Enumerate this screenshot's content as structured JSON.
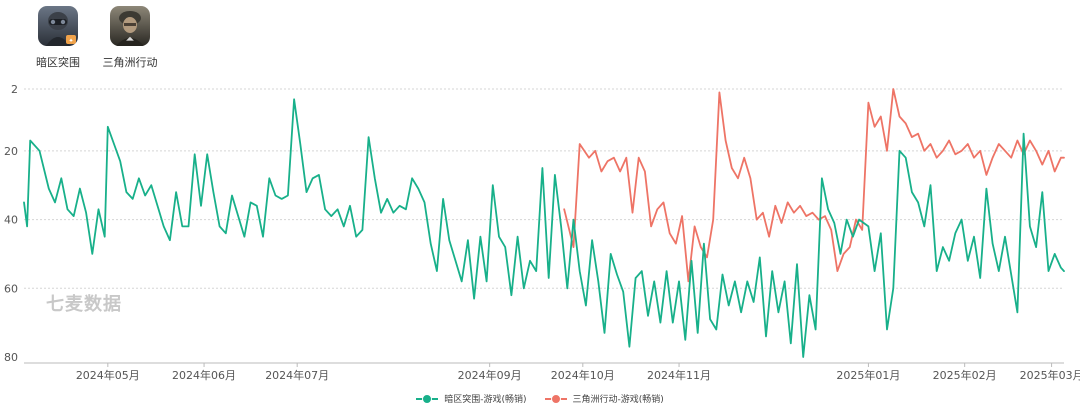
{
  "apps": [
    {
      "name": "暗区突围",
      "icon": "soldier-mask-app-icon"
    },
    {
      "name": "三角洲行动",
      "icon": "soldier-portrait-app-icon"
    }
  ],
  "watermark": "七麦数据",
  "colors": {
    "series1": "#18b08a",
    "series2": "#ee7466",
    "grid": "#d5d5d5",
    "axis_text": "#555555"
  },
  "chart_data": {
    "type": "line",
    "title": "",
    "xlabel": "",
    "ylabel": "",
    "ylim": [
      80,
      2
    ],
    "y_reversed": true,
    "yticks": [
      2,
      20,
      40,
      60,
      80
    ],
    "x_range": [
      "2024-04-04",
      "2025-03-05"
    ],
    "xticks": [
      "2024-05-01",
      "2024-06-01",
      "2024-07-01",
      "2024-09-01",
      "2024-10-01",
      "2024-11-01",
      "2025-01-01",
      "2025-02-01",
      "2025-03-01"
    ],
    "xtick_labels": [
      "2024年05月",
      "2024年06月",
      "2024年07月",
      "2024年09月",
      "2024年10月",
      "2024年11月",
      "2025年01月",
      "2025年02月",
      "2025年03月"
    ],
    "grid": true,
    "legend_position": "bottom",
    "series": [
      {
        "name": "暗区突围-游戏(畅销)",
        "color": "#18b08a",
        "points": [
          [
            "2024-04-04",
            35
          ],
          [
            "2024-04-05",
            42
          ],
          [
            "2024-04-06",
            17
          ],
          [
            "2024-04-09",
            20
          ],
          [
            "2024-04-12",
            31
          ],
          [
            "2024-04-14",
            35
          ],
          [
            "2024-04-16",
            28
          ],
          [
            "2024-04-18",
            37
          ],
          [
            "2024-04-20",
            39
          ],
          [
            "2024-04-22",
            31
          ],
          [
            "2024-04-24",
            38
          ],
          [
            "2024-04-26",
            50
          ],
          [
            "2024-04-28",
            37
          ],
          [
            "2024-04-30",
            45
          ],
          [
            "2024-05-01",
            13
          ],
          [
            "2024-05-03",
            18
          ],
          [
            "2024-05-05",
            23
          ],
          [
            "2024-05-07",
            32
          ],
          [
            "2024-05-09",
            34
          ],
          [
            "2024-05-11",
            28
          ],
          [
            "2024-05-13",
            33
          ],
          [
            "2024-05-15",
            30
          ],
          [
            "2024-05-17",
            36
          ],
          [
            "2024-05-19",
            42
          ],
          [
            "2024-05-21",
            46
          ],
          [
            "2024-05-23",
            32
          ],
          [
            "2024-05-25",
            42
          ],
          [
            "2024-05-27",
            42
          ],
          [
            "2024-05-29",
            21
          ],
          [
            "2024-05-31",
            36
          ],
          [
            "2024-06-02",
            21
          ],
          [
            "2024-06-04",
            32
          ],
          [
            "2024-06-06",
            42
          ],
          [
            "2024-06-08",
            44
          ],
          [
            "2024-06-10",
            33
          ],
          [
            "2024-06-12",
            39
          ],
          [
            "2024-06-14",
            45
          ],
          [
            "2024-06-16",
            35
          ],
          [
            "2024-06-18",
            36
          ],
          [
            "2024-06-20",
            45
          ],
          [
            "2024-06-22",
            28
          ],
          [
            "2024-06-24",
            33
          ],
          [
            "2024-06-26",
            34
          ],
          [
            "2024-06-28",
            33
          ],
          [
            "2024-06-30",
            5
          ],
          [
            "2024-07-02",
            18
          ],
          [
            "2024-07-04",
            32
          ],
          [
            "2024-07-06",
            28
          ],
          [
            "2024-07-08",
            27
          ],
          [
            "2024-07-10",
            37
          ],
          [
            "2024-07-12",
            39
          ],
          [
            "2024-07-14",
            37
          ],
          [
            "2024-07-16",
            42
          ],
          [
            "2024-07-18",
            36
          ],
          [
            "2024-07-20",
            45
          ],
          [
            "2024-07-22",
            43
          ],
          [
            "2024-07-24",
            16
          ],
          [
            "2024-07-26",
            28
          ],
          [
            "2024-07-28",
            38
          ],
          [
            "2024-07-30",
            34
          ],
          [
            "2024-08-01",
            38
          ],
          [
            "2024-08-03",
            36
          ],
          [
            "2024-08-05",
            37
          ],
          [
            "2024-08-07",
            28
          ],
          [
            "2024-08-09",
            31
          ],
          [
            "2024-08-11",
            35
          ],
          [
            "2024-08-13",
            47
          ],
          [
            "2024-08-15",
            55
          ],
          [
            "2024-08-17",
            34
          ],
          [
            "2024-08-19",
            46
          ],
          [
            "2024-08-21",
            52
          ],
          [
            "2024-08-23",
            58
          ],
          [
            "2024-08-25",
            46
          ],
          [
            "2024-08-27",
            63
          ],
          [
            "2024-08-29",
            45
          ],
          [
            "2024-08-31",
            58
          ],
          [
            "2024-09-02",
            30
          ],
          [
            "2024-09-04",
            45
          ],
          [
            "2024-09-06",
            48
          ],
          [
            "2024-09-08",
            62
          ],
          [
            "2024-09-10",
            45
          ],
          [
            "2024-09-12",
            60
          ],
          [
            "2024-09-14",
            52
          ],
          [
            "2024-09-16",
            55
          ],
          [
            "2024-09-18",
            25
          ],
          [
            "2024-09-20",
            57
          ],
          [
            "2024-09-22",
            27
          ],
          [
            "2024-09-24",
            42
          ],
          [
            "2024-09-26",
            60
          ],
          [
            "2024-09-28",
            40
          ],
          [
            "2024-09-30",
            55
          ],
          [
            "2024-10-02",
            65
          ],
          [
            "2024-10-04",
            46
          ],
          [
            "2024-10-06",
            58
          ],
          [
            "2024-10-08",
            73
          ],
          [
            "2024-10-10",
            50
          ],
          [
            "2024-10-12",
            56
          ],
          [
            "2024-10-14",
            61
          ],
          [
            "2024-10-16",
            77
          ],
          [
            "2024-10-18",
            57
          ],
          [
            "2024-10-20",
            55
          ],
          [
            "2024-10-22",
            68
          ],
          [
            "2024-10-24",
            58
          ],
          [
            "2024-10-26",
            70
          ],
          [
            "2024-10-28",
            55
          ],
          [
            "2024-10-30",
            70
          ],
          [
            "2024-11-01",
            58
          ],
          [
            "2024-11-03",
            75
          ],
          [
            "2024-11-05",
            52
          ],
          [
            "2024-11-07",
            73
          ],
          [
            "2024-11-09",
            47
          ],
          [
            "2024-11-11",
            69
          ],
          [
            "2024-11-13",
            72
          ],
          [
            "2024-11-15",
            56
          ],
          [
            "2024-11-17",
            65
          ],
          [
            "2024-11-19",
            58
          ],
          [
            "2024-11-21",
            67
          ],
          [
            "2024-11-23",
            58
          ],
          [
            "2024-11-25",
            64
          ],
          [
            "2024-11-27",
            51
          ],
          [
            "2024-11-29",
            74
          ],
          [
            "2024-12-01",
            55
          ],
          [
            "2024-12-03",
            67
          ],
          [
            "2024-12-05",
            58
          ],
          [
            "2024-12-07",
            76
          ],
          [
            "2024-12-09",
            53
          ],
          [
            "2024-12-11",
            80
          ],
          [
            "2024-12-13",
            62
          ],
          [
            "2024-12-15",
            72
          ],
          [
            "2024-12-17",
            28
          ],
          [
            "2024-12-19",
            37
          ],
          [
            "2024-12-21",
            41
          ],
          [
            "2024-12-23",
            50
          ],
          [
            "2024-12-25",
            40
          ],
          [
            "2024-12-27",
            45
          ],
          [
            "2024-12-29",
            40
          ],
          [
            "2025-01-01",
            42
          ],
          [
            "2025-01-03",
            55
          ],
          [
            "2025-01-05",
            44
          ],
          [
            "2025-01-07",
            72
          ],
          [
            "2025-01-09",
            60
          ],
          [
            "2025-01-11",
            20
          ],
          [
            "2025-01-13",
            22
          ],
          [
            "2025-01-15",
            32
          ],
          [
            "2025-01-17",
            35
          ],
          [
            "2025-01-19",
            42
          ],
          [
            "2025-01-21",
            30
          ],
          [
            "2025-01-23",
            55
          ],
          [
            "2025-01-25",
            48
          ],
          [
            "2025-01-27",
            52
          ],
          [
            "2025-01-29",
            44
          ],
          [
            "2025-01-31",
            40
          ],
          [
            "2025-02-02",
            52
          ],
          [
            "2025-02-04",
            45
          ],
          [
            "2025-02-06",
            57
          ],
          [
            "2025-02-08",
            31
          ],
          [
            "2025-02-10",
            47
          ],
          [
            "2025-02-12",
            55
          ],
          [
            "2025-02-14",
            45
          ],
          [
            "2025-02-16",
            56
          ],
          [
            "2025-02-18",
            67
          ],
          [
            "2025-02-20",
            15
          ],
          [
            "2025-02-22",
            42
          ],
          [
            "2025-02-24",
            48
          ],
          [
            "2025-02-26",
            32
          ],
          [
            "2025-02-28",
            55
          ],
          [
            "2025-03-02",
            50
          ],
          [
            "2025-03-04",
            54
          ],
          [
            "2025-03-05",
            55
          ]
        ]
      },
      {
        "name": "三角洲行动-游戏(畅销)",
        "color": "#ee7466",
        "points": [
          [
            "2024-09-25",
            37
          ],
          [
            "2024-09-28",
            48
          ],
          [
            "2024-09-30",
            18
          ],
          [
            "2024-10-03",
            22
          ],
          [
            "2024-10-05",
            20
          ],
          [
            "2024-10-07",
            26
          ],
          [
            "2024-10-09",
            23
          ],
          [
            "2024-10-11",
            22
          ],
          [
            "2024-10-13",
            26
          ],
          [
            "2024-10-15",
            22
          ],
          [
            "2024-10-17",
            38
          ],
          [
            "2024-10-19",
            22
          ],
          [
            "2024-10-21",
            26
          ],
          [
            "2024-10-23",
            42
          ],
          [
            "2024-10-25",
            37
          ],
          [
            "2024-10-27",
            35
          ],
          [
            "2024-10-29",
            44
          ],
          [
            "2024-10-31",
            47
          ],
          [
            "2024-11-02",
            39
          ],
          [
            "2024-11-04",
            58
          ],
          [
            "2024-11-06",
            42
          ],
          [
            "2024-11-08",
            48
          ],
          [
            "2024-11-10",
            51
          ],
          [
            "2024-11-12",
            40
          ],
          [
            "2024-11-14",
            3
          ],
          [
            "2024-11-16",
            17
          ],
          [
            "2024-11-18",
            25
          ],
          [
            "2024-11-20",
            28
          ],
          [
            "2024-11-22",
            22
          ],
          [
            "2024-11-24",
            28
          ],
          [
            "2024-11-26",
            40
          ],
          [
            "2024-11-28",
            38
          ],
          [
            "2024-11-30",
            45
          ],
          [
            "2024-12-02",
            36
          ],
          [
            "2024-12-04",
            41
          ],
          [
            "2024-12-06",
            35
          ],
          [
            "2024-12-08",
            38
          ],
          [
            "2024-12-10",
            36
          ],
          [
            "2024-12-12",
            39
          ],
          [
            "2024-12-14",
            38
          ],
          [
            "2024-12-16",
            40
          ],
          [
            "2024-12-18",
            39
          ],
          [
            "2024-12-20",
            43
          ],
          [
            "2024-12-22",
            55
          ],
          [
            "2024-12-24",
            50
          ],
          [
            "2024-12-26",
            48
          ],
          [
            "2024-12-28",
            40
          ],
          [
            "2024-12-30",
            43
          ],
          [
            "2025-01-01",
            6
          ],
          [
            "2025-01-03",
            13
          ],
          [
            "2025-01-05",
            10
          ],
          [
            "2025-01-07",
            20
          ],
          [
            "2025-01-09",
            2
          ],
          [
            "2025-01-11",
            10
          ],
          [
            "2025-01-13",
            12
          ],
          [
            "2025-01-15",
            16
          ],
          [
            "2025-01-17",
            15
          ],
          [
            "2025-01-19",
            20
          ],
          [
            "2025-01-21",
            18
          ],
          [
            "2025-01-23",
            22
          ],
          [
            "2025-01-25",
            20
          ],
          [
            "2025-01-27",
            17
          ],
          [
            "2025-01-29",
            21
          ],
          [
            "2025-01-31",
            20
          ],
          [
            "2025-02-02",
            18
          ],
          [
            "2025-02-04",
            22
          ],
          [
            "2025-02-06",
            20
          ],
          [
            "2025-02-08",
            27
          ],
          [
            "2025-02-10",
            22
          ],
          [
            "2025-02-12",
            18
          ],
          [
            "2025-02-14",
            20
          ],
          [
            "2025-02-16",
            22
          ],
          [
            "2025-02-18",
            17
          ],
          [
            "2025-02-20",
            21
          ],
          [
            "2025-02-22",
            17
          ],
          [
            "2025-02-24",
            20
          ],
          [
            "2025-02-26",
            24
          ],
          [
            "2025-02-28",
            20
          ],
          [
            "2025-03-02",
            26
          ],
          [
            "2025-03-04",
            22
          ],
          [
            "2025-03-05",
            22
          ]
        ]
      }
    ]
  }
}
